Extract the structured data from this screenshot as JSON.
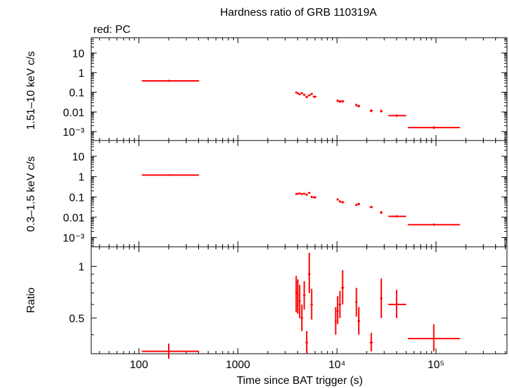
{
  "chart_data": [
    {
      "type": "scatter",
      "panel": "top",
      "title": "Hardness ratio of GRB 110319A",
      "subtitle": "red: PC",
      "ylabel": "1.51–10 keV c/s",
      "xlabel": "",
      "xscale": "log",
      "yscale": "log",
      "xlim": [
        33,
        520000
      ],
      "ylim": [
        0.00035,
        60
      ],
      "ytick_labels": [
        "10",
        "1",
        "0.1",
        "0.01",
        "10⁻³"
      ],
      "series": [
        {
          "color": "#ff0000",
          "points": [
            {
              "x": 200,
              "xlo": 107,
              "xhi": 405,
              "y": 0.38,
              "ylo": 0.34,
              "yhi": 0.43
            },
            {
              "x": 3870,
              "xlo": 3790,
              "xhi": 3960,
              "y": 0.098,
              "ylo": 0.087,
              "yhi": 0.11
            },
            {
              "x": 4020,
              "xlo": 3960,
              "xhi": 4100,
              "y": 0.088,
              "ylo": 0.078,
              "yhi": 0.099
            },
            {
              "x": 4200,
              "xlo": 4100,
              "xhi": 4300,
              "y": 0.08,
              "ylo": 0.071,
              "yhi": 0.09
            },
            {
              "x": 4420,
              "xlo": 4300,
              "xhi": 4540,
              "y": 0.09,
              "ylo": 0.08,
              "yhi": 0.101
            },
            {
              "x": 4670,
              "xlo": 4540,
              "xhi": 4800,
              "y": 0.075,
              "ylo": 0.066,
              "yhi": 0.085
            },
            {
              "x": 4950,
              "xlo": 4800,
              "xhi": 5100,
              "y": 0.058,
              "ylo": 0.05,
              "yhi": 0.067
            },
            {
              "x": 5250,
              "xlo": 5100,
              "xhi": 5400,
              "y": 0.07,
              "ylo": 0.062,
              "yhi": 0.079
            },
            {
              "x": 5550,
              "xlo": 5400,
              "xhi": 5700,
              "y": 0.082,
              "ylo": 0.072,
              "yhi": 0.093
            },
            {
              "x": 5950,
              "xlo": 5700,
              "xhi": 6200,
              "y": 0.06,
              "ylo": 0.052,
              "yhi": 0.068
            },
            {
              "x": 10150,
              "xlo": 9900,
              "xhi": 10400,
              "y": 0.037,
              "ylo": 0.032,
              "yhi": 0.043
            },
            {
              "x": 10700,
              "xlo": 10400,
              "xhi": 11000,
              "y": 0.034,
              "ylo": 0.029,
              "yhi": 0.039
            },
            {
              "x": 11400,
              "xlo": 11000,
              "xhi": 11800,
              "y": 0.035,
              "ylo": 0.03,
              "yhi": 0.04
            },
            {
              "x": 15700,
              "xlo": 15300,
              "xhi": 16100,
              "y": 0.022,
              "ylo": 0.019,
              "yhi": 0.026
            },
            {
              "x": 16600,
              "xlo": 16100,
              "xhi": 17100,
              "y": 0.02,
              "ylo": 0.017,
              "yhi": 0.023
            },
            {
              "x": 22200,
              "xlo": 21400,
              "xhi": 23000,
              "y": 0.0115,
              "ylo": 0.0098,
              "yhi": 0.0133
            },
            {
              "x": 28000,
              "xlo": 27200,
              "xhi": 28800,
              "y": 0.011,
              "ylo": 0.0094,
              "yhi": 0.0128
            },
            {
              "x": 40000,
              "xlo": 33000,
              "xhi": 50000,
              "y": 0.0065,
              "ylo": 0.0056,
              "yhi": 0.0075
            },
            {
              "x": 95000,
              "xlo": 52000,
              "xhi": 175000,
              "y": 0.0016,
              "ylo": 0.00135,
              "yhi": 0.0019
            }
          ]
        }
      ]
    },
    {
      "type": "scatter",
      "panel": "middle",
      "ylabel": "0.3–1.5 keV c/s",
      "xlabel": "",
      "xscale": "log",
      "yscale": "log",
      "xlim": [
        33,
        520000
      ],
      "ylim": [
        0.00035,
        60
      ],
      "ytick_labels": [
        "10",
        "1",
        "0.1",
        "0.01",
        "10⁻³"
      ],
      "series": [
        {
          "color": "#ff0000",
          "points": [
            {
              "x": 200,
              "xlo": 107,
              "xhi": 405,
              "y": 1.2,
              "ylo": 1.1,
              "yhi": 1.3
            },
            {
              "x": 3870,
              "xlo": 3790,
              "xhi": 3960,
              "y": 0.14,
              "ylo": 0.125,
              "yhi": 0.156
            },
            {
              "x": 4020,
              "xlo": 3960,
              "xhi": 4100,
              "y": 0.145,
              "ylo": 0.13,
              "yhi": 0.16
            },
            {
              "x": 4200,
              "xlo": 4100,
              "xhi": 4300,
              "y": 0.15,
              "ylo": 0.135,
              "yhi": 0.166
            },
            {
              "x": 4420,
              "xlo": 4300,
              "xhi": 4540,
              "y": 0.14,
              "ylo": 0.125,
              "yhi": 0.156
            },
            {
              "x": 4670,
              "xlo": 4540,
              "xhi": 4800,
              "y": 0.145,
              "ylo": 0.13,
              "yhi": 0.16
            },
            {
              "x": 4950,
              "xlo": 4800,
              "xhi": 5100,
              "y": 0.13,
              "ylo": 0.116,
              "yhi": 0.146
            },
            {
              "x": 5250,
              "xlo": 5100,
              "xhi": 5400,
              "y": 0.16,
              "ylo": 0.143,
              "yhi": 0.177
            },
            {
              "x": 5550,
              "xlo": 5400,
              "xhi": 5700,
              "y": 0.1,
              "ylo": 0.088,
              "yhi": 0.112
            },
            {
              "x": 5950,
              "xlo": 5700,
              "xhi": 6200,
              "y": 0.095,
              "ylo": 0.084,
              "yhi": 0.107
            },
            {
              "x": 10150,
              "xlo": 9900,
              "xhi": 10400,
              "y": 0.075,
              "ylo": 0.066,
              "yhi": 0.085
            },
            {
              "x": 10700,
              "xlo": 10400,
              "xhi": 11000,
              "y": 0.06,
              "ylo": 0.053,
              "yhi": 0.068
            },
            {
              "x": 11400,
              "xlo": 11000,
              "xhi": 11800,
              "y": 0.055,
              "ylo": 0.048,
              "yhi": 0.062
            },
            {
              "x": 15700,
              "xlo": 15300,
              "xhi": 16100,
              "y": 0.04,
              "ylo": 0.035,
              "yhi": 0.046
            },
            {
              "x": 16600,
              "xlo": 16100,
              "xhi": 17100,
              "y": 0.045,
              "ylo": 0.039,
              "yhi": 0.051
            },
            {
              "x": 22200,
              "xlo": 21400,
              "xhi": 23000,
              "y": 0.032,
              "ylo": 0.028,
              "yhi": 0.036
            },
            {
              "x": 28000,
              "xlo": 27200,
              "xhi": 28800,
              "y": 0.017,
              "ylo": 0.0145,
              "yhi": 0.02
            },
            {
              "x": 40000,
              "xlo": 33000,
              "xhi": 50000,
              "y": 0.011,
              "ylo": 0.0097,
              "yhi": 0.0125
            },
            {
              "x": 95000,
              "xlo": 52000,
              "xhi": 175000,
              "y": 0.0043,
              "ylo": 0.0038,
              "yhi": 0.0049
            }
          ]
        }
      ]
    },
    {
      "type": "scatter",
      "panel": "bottom",
      "ylabel": "Ratio",
      "xlabel": "Time since BAT trigger (s)",
      "xscale": "log",
      "yscale": "log",
      "xlim": [
        33,
        520000
      ],
      "ylim": [
        0.31,
        1.3
      ],
      "ytick_labels": [
        "1",
        "0.5"
      ],
      "xtick_labels": [
        "100",
        "1000",
        "10⁴",
        "10⁵"
      ],
      "series": [
        {
          "color": "#ff0000",
          "points": [
            {
              "x": 200,
              "xlo": 107,
              "xhi": 405,
              "y": 0.32,
              "ylo": 0.29,
              "yhi": 0.355
            },
            {
              "x": 3870,
              "xlo": 3790,
              "xhi": 3960,
              "y": 0.7,
              "ylo": 0.54,
              "yhi": 0.88
            },
            {
              "x": 4020,
              "xlo": 3960,
              "xhi": 4100,
              "y": 0.68,
              "ylo": 0.53,
              "yhi": 0.84
            },
            {
              "x": 4200,
              "xlo": 4100,
              "xhi": 4300,
              "y": 0.63,
              "ylo": 0.5,
              "yhi": 0.78
            },
            {
              "x": 4420,
              "xlo": 4300,
              "xhi": 4540,
              "y": 0.5,
              "ylo": 0.42,
              "yhi": 0.6
            },
            {
              "x": 4670,
              "xlo": 4540,
              "xhi": 4800,
              "y": 0.68,
              "ylo": 0.56,
              "yhi": 0.82
            },
            {
              "x": 4950,
              "xlo": 4800,
              "xhi": 5100,
              "y": 0.36,
              "ylo": 0.31,
              "yhi": 0.42
            },
            {
              "x": 5250,
              "xlo": 5100,
              "xhi": 5400,
              "y": 0.9,
              "ylo": 0.7,
              "yhi": 1.2
            },
            {
              "x": 5550,
              "xlo": 5400,
              "xhi": 5700,
              "y": 0.6,
              "ylo": 0.49,
              "yhi": 0.74
            },
            {
              "x": 9700,
              "xlo": 9500,
              "xhi": 9900,
              "y": 0.48,
              "ylo": 0.4,
              "yhi": 0.58
            },
            {
              "x": 10150,
              "xlo": 9900,
              "xhi": 10400,
              "y": 0.55,
              "ylo": 0.46,
              "yhi": 0.67
            },
            {
              "x": 10700,
              "xlo": 10400,
              "xhi": 11000,
              "y": 0.6,
              "ylo": 0.5,
              "yhi": 0.72
            },
            {
              "x": 11400,
              "xlo": 11000,
              "xhi": 11800,
              "y": 0.75,
              "ylo": 0.6,
              "yhi": 0.95
            },
            {
              "x": 15700,
              "xlo": 15300,
              "xhi": 16100,
              "y": 0.62,
              "ylo": 0.51,
              "yhi": 0.75
            },
            {
              "x": 16600,
              "xlo": 16100,
              "xhi": 17100,
              "y": 0.48,
              "ylo": 0.4,
              "yhi": 0.58
            },
            {
              "x": 22200,
              "xlo": 21400,
              "xhi": 23000,
              "y": 0.36,
              "ylo": 0.32,
              "yhi": 0.41
            },
            {
              "x": 28000,
              "xlo": 27200,
              "xhi": 28800,
              "y": 0.65,
              "ylo": 0.5,
              "yhi": 0.85
            },
            {
              "x": 40000,
              "xlo": 33000,
              "xhi": 50000,
              "y": 0.6,
              "ylo": 0.5,
              "yhi": 0.73
            },
            {
              "x": 95000,
              "xlo": 52000,
              "xhi": 175000,
              "y": 0.38,
              "ylo": 0.32,
              "yhi": 0.46
            }
          ]
        }
      ]
    }
  ]
}
